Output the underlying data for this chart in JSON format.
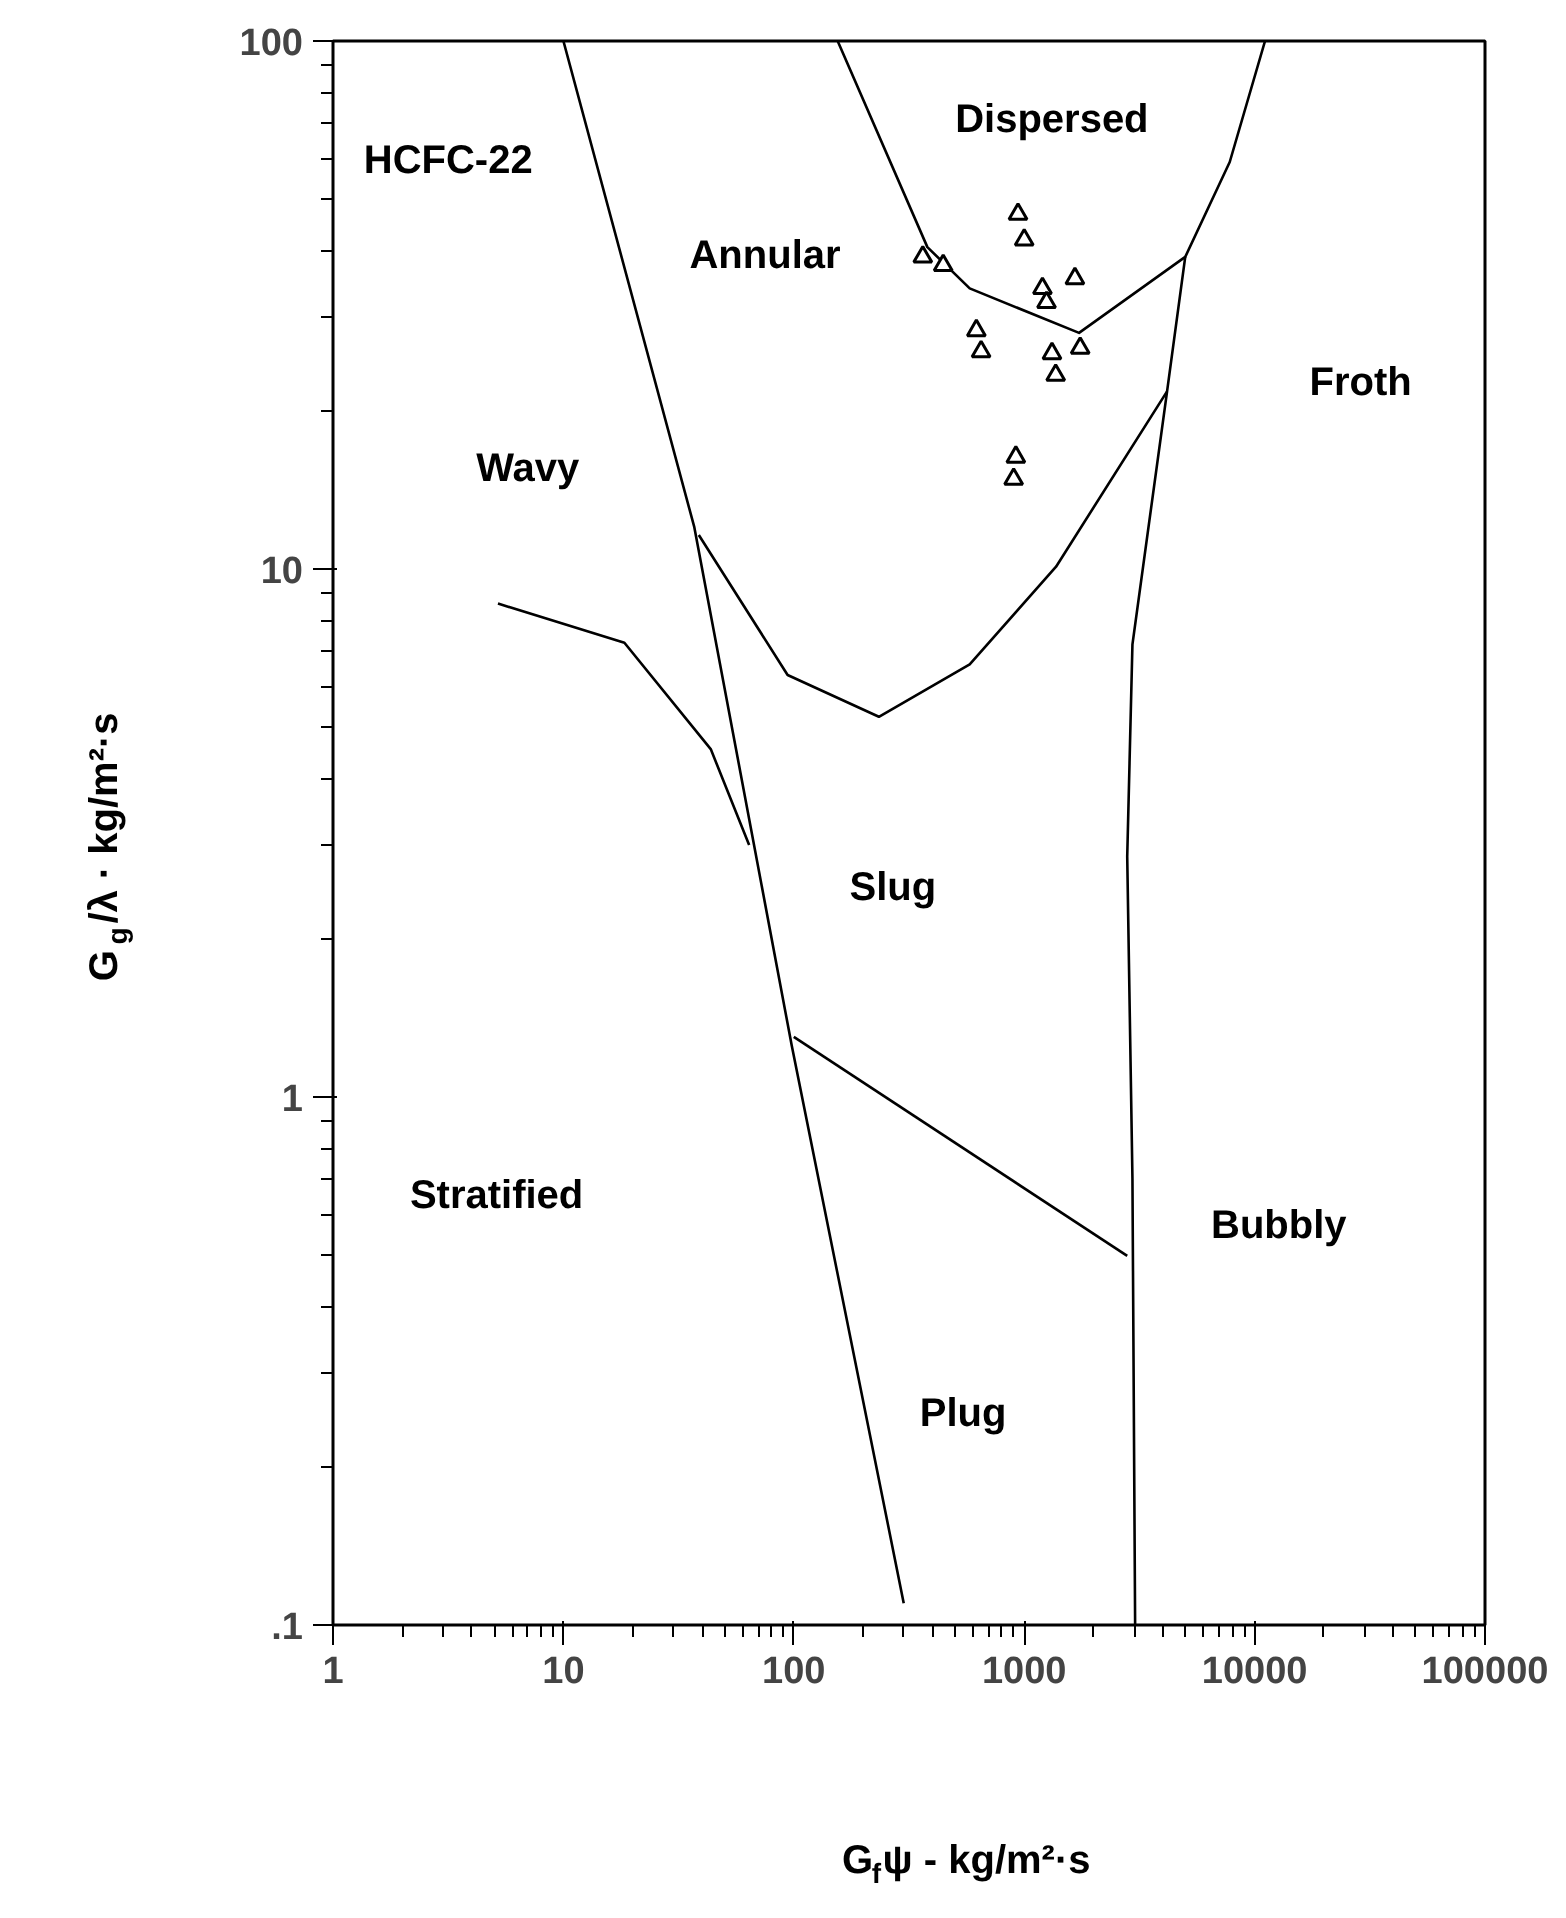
{
  "chart_data": {
    "type": "line",
    "xlabel": "G$_{f}$ψ - kg/m²·s",
    "ylabel": "G$_{g}$/λ · kg/m²·s",
    "log": "xy",
    "grid": false,
    "marker": "none",
    "line_style": "solid",
    "xlim": [
      1,
      100000
    ],
    "ylim": [
      0.1,
      100
    ],
    "xticks": [
      1,
      10,
      100,
      1000,
      10000,
      100000
    ],
    "yticks": [
      {
        "value": 0.1,
        "label": ".1"
      },
      1,
      10,
      100
    ],
    "series": [
      {
        "color": "#000000",
        "x": [
          10,
          37,
          98,
          300
        ],
        "values": [
          100,
          12,
          1.25,
          0.11
        ]
      },
      {
        "color": "#000000",
        "x": [
          5.2,
          18.4,
          43.6,
          64
        ],
        "values": [
          8.6,
          7.25,
          4.56,
          3.0
        ]
      },
      {
        "color": "#000000",
        "x": [
          38.7,
          94,
          234,
          580,
          1375,
          4170
        ],
        "values": [
          11.6,
          6.3,
          5.25,
          6.6,
          10.1,
          21.7
        ]
      },
      {
        "color": "#000000",
        "x": [
          155,
          380,
          580,
          1730,
          5000,
          7800,
          11100
        ],
        "values": [
          100,
          40.7,
          34,
          28,
          39,
          59,
          100
        ]
      },
      {
        "color": "#000000",
        "x": [
          5000,
          4170,
          2950,
          2800,
          2950,
          3030
        ],
        "values": [
          39,
          21.7,
          7.2,
          2.85,
          0.7,
          0.1
        ]
      },
      {
        "color": "#000000",
        "x": [
          100,
          2800
        ],
        "values": [
          1.3,
          0.5
        ]
      },
      {
        "type": "scatter",
        "marker": "triangle",
        "color": "#000000",
        "x": [
          363,
          445,
          940,
          1000,
          1200,
          1250,
          1660,
          620,
          650,
          1320,
          1750,
          1370,
          920,
          900
        ],
        "values": [
          39,
          37.6,
          47,
          42,
          34,
          32,
          35.5,
          28.3,
          25.8,
          25.6,
          26.2,
          23.3,
          16.3,
          14.8
        ]
      }
    ],
    "annotations": [
      "HCFC-22",
      "Dispersed",
      "Annular",
      "Froth",
      "Wavy",
      "Slug",
      "Stratified",
      "Bubbly",
      "Plug"
    ]
  }
}
